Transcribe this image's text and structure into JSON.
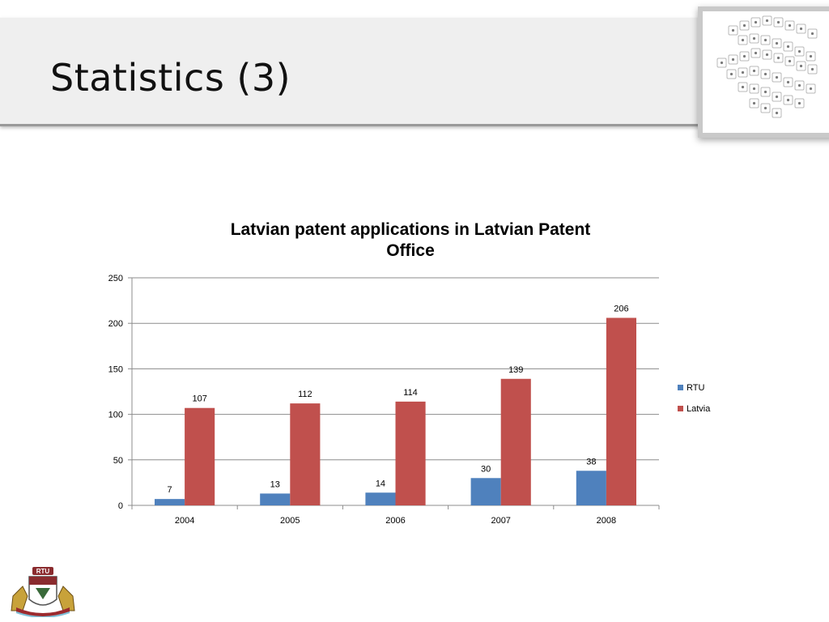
{
  "slide": {
    "title": "Statistics (3)"
  },
  "colors": {
    "rtu": "#4f81bd",
    "latvia": "#c0504d",
    "gridline": "#8c8c8c"
  },
  "decor": {
    "crossword_icon": "crossword-tiles-image",
    "logo_icon": "rtu-coat-of-arms",
    "logo_text": "RTU"
  },
  "chart_data": {
    "type": "bar",
    "title_lines": [
      "Latvian patent applications in Latvian Patent",
      "Office"
    ],
    "categories": [
      "2004",
      "2005",
      "2006",
      "2007",
      "2008"
    ],
    "series": [
      {
        "name": "RTU",
        "values": [
          7,
          13,
          14,
          30,
          38
        ],
        "color": "#4f81bd"
      },
      {
        "name": "Latvia",
        "values": [
          107,
          112,
          114,
          139,
          206
        ],
        "color": "#c0504d"
      }
    ],
    "ylim": [
      0,
      250
    ],
    "yticks": [
      "0",
      "50",
      "100",
      "150",
      "200",
      "250"
    ],
    "xlabel": "",
    "ylabel": "",
    "grid": true,
    "legend": "right"
  }
}
